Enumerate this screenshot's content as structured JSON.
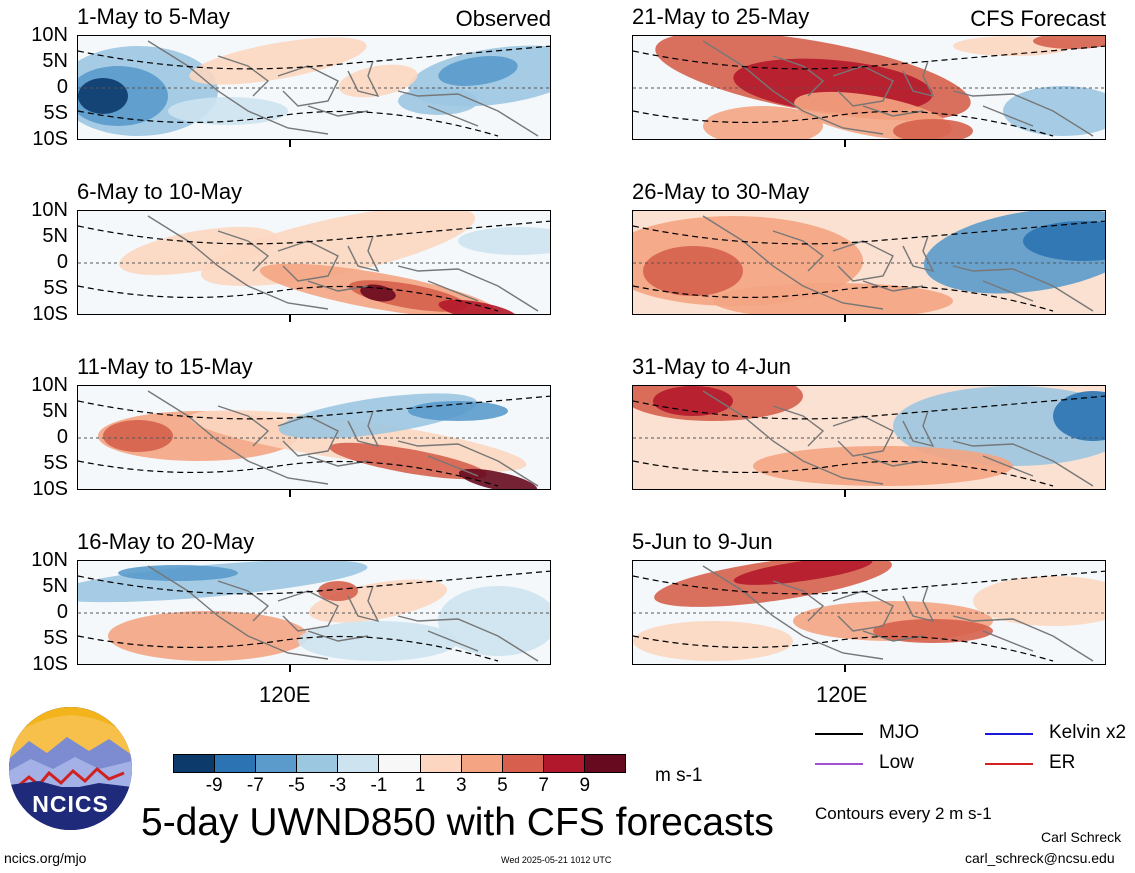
{
  "panels": [
    {
      "title": "1-May to 5-May",
      "tag": "Observed"
    },
    {
      "title": "6-May to 10-May",
      "tag": ""
    },
    {
      "title": "11-May to 15-May",
      "tag": ""
    },
    {
      "title": "16-May to 20-May",
      "tag": ""
    },
    {
      "title": "21-May to 25-May",
      "tag": "CFS Forecast"
    },
    {
      "title": "26-May to 30-May",
      "tag": ""
    },
    {
      "title": "31-May to 4-Jun",
      "tag": ""
    },
    {
      "title": "5-Jun to 9-Jun",
      "tag": ""
    }
  ],
  "lat_labels": [
    "10N",
    "5N",
    "0",
    "5S",
    "10S"
  ],
  "lon_label": "120E",
  "colorbar": {
    "colors": [
      "#0b3a6b",
      "#2b73b2",
      "#5a9bcb",
      "#9cc7e1",
      "#cde3f0",
      "#f7f7f7",
      "#fcd6c0",
      "#f4a482",
      "#d6604d",
      "#b2182b",
      "#670a1f"
    ],
    "labels": [
      "-9",
      "-7",
      "-5",
      "-3",
      "-1",
      "1",
      "3",
      "5",
      "7",
      "9"
    ],
    "units": "m s-1"
  },
  "main_title": "5-day UWND850 with CFS forecasts",
  "logo_text": "NCICS",
  "url": "ncics.org/mjo",
  "timestamp": "Wed 2025-05-21 1012 UTC",
  "legend": {
    "items": [
      {
        "label": "MJO",
        "color": "#000000"
      },
      {
        "label": "Kelvin x2",
        "color": "#1a1ad6"
      },
      {
        "label": "Low",
        "color": "#a050d0"
      },
      {
        "label": "ER",
        "color": "#d42020"
      }
    ],
    "contours_note": "Contours every 2 m s-1"
  },
  "author": {
    "name": "Carl Schreck",
    "email": "carl_schreck@ncsu.edu"
  }
}
